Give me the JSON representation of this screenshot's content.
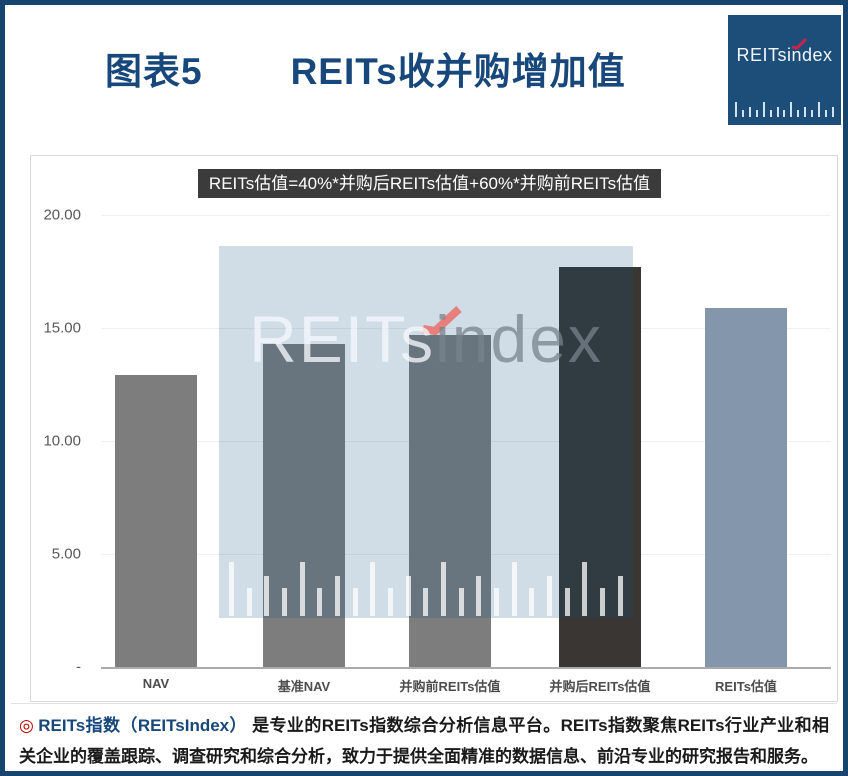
{
  "header": {
    "title_label": "图表5",
    "title_text": "REITs收并购增加值"
  },
  "logo": {
    "text": "REITsindex",
    "bg_color": "#1d4e79",
    "check_color": "#c8234d"
  },
  "chart_data": {
    "type": "bar",
    "title": "REITs收并购增加值",
    "annotation": "REITs估值=40%*并购后REITs估值+60%*并购前REITs估值",
    "categories": [
      "NAV",
      "基准NAV",
      "并购前REITs估值",
      "并购后REITs估值",
      "REITs估值"
    ],
    "values": [
      12.9,
      14.3,
      14.7,
      17.7,
      15.9
    ],
    "bar_colors": [
      "#7d7d7d",
      "#7d7d7d",
      "#7d7d7d",
      "#393633",
      "#8496ac"
    ],
    "ylim": [
      0,
      20
    ],
    "ytick_labels": [
      "20.00",
      "15.00",
      "10.00",
      "5.00",
      "-"
    ],
    "ytick_values": [
      20,
      15,
      10,
      5,
      0
    ],
    "grid": true,
    "legend": "none",
    "watermark_text_light": "REITs",
    "watermark_text_gray": "index",
    "watermark_bg": "rgba(20,80,130,0.20)"
  },
  "footer": {
    "icon": "bullseye-icon",
    "brand": "REITs指数（REITsIndex）",
    "text": "是专业的REITs指数综合分析信息平台。REITs指数聚焦REITs行业产业和相关企业的覆盖跟踪、调查研究和综合分析，致力于提供全面精准的数据信息、前沿专业的研究报告和服务。"
  },
  "colors": {
    "accent_navy": "#17477b",
    "frame_border": "#17446e",
    "formula_bg": "#3b3b3b",
    "footer_red": "#c00000"
  }
}
